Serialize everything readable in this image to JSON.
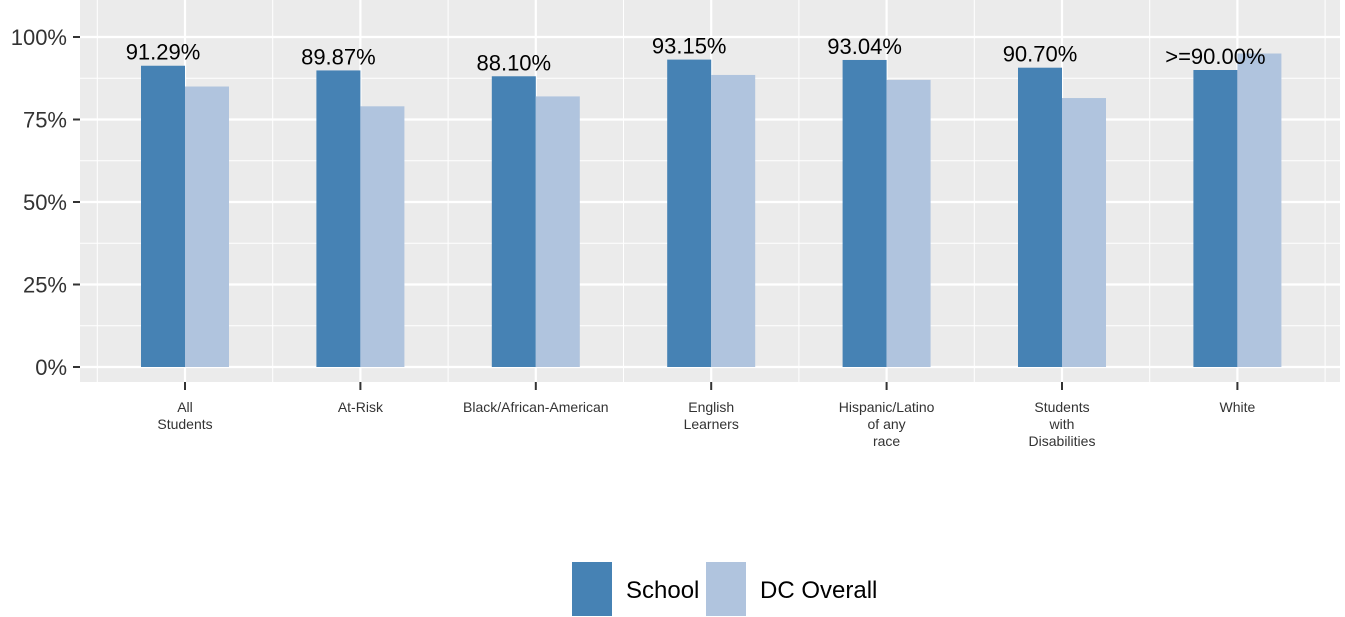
{
  "chart_data": {
    "type": "bar",
    "categories": [
      [
        "All",
        "Students"
      ],
      [
        "At-Risk"
      ],
      [
        "Black/African-American"
      ],
      [
        "English",
        "Learners"
      ],
      [
        "Hispanic/Latino",
        "of any",
        "race"
      ],
      [
        "Students",
        "with",
        "Disabilities"
      ],
      [
        "White"
      ]
    ],
    "series": [
      {
        "name": "School",
        "color": "#4682b4",
        "values": [
          91.29,
          89.87,
          88.1,
          93.15,
          93.04,
          90.7,
          90.0
        ],
        "labels": [
          "91.29%",
          "89.87%",
          "88.10%",
          "93.15%",
          "93.04%",
          "90.70%",
          ">=90.00%"
        ]
      },
      {
        "name": "DC Overall",
        "color": "#b0c4de",
        "values": [
          85.0,
          79.0,
          82.0,
          88.5,
          87.0,
          81.5,
          95.0
        ]
      }
    ],
    "yticks": [
      "0%",
      "25%",
      "50%",
      "75%",
      "100%"
    ],
    "ytick_values": [
      0,
      25,
      50,
      75,
      100
    ],
    "ylim": [
      0,
      110
    ],
    "title": "",
    "xlabel": "",
    "ylabel": "",
    "grid": true,
    "legend_position": "bottom",
    "panel_color": "#ebebeb",
    "grid_color": "#ffffff"
  }
}
